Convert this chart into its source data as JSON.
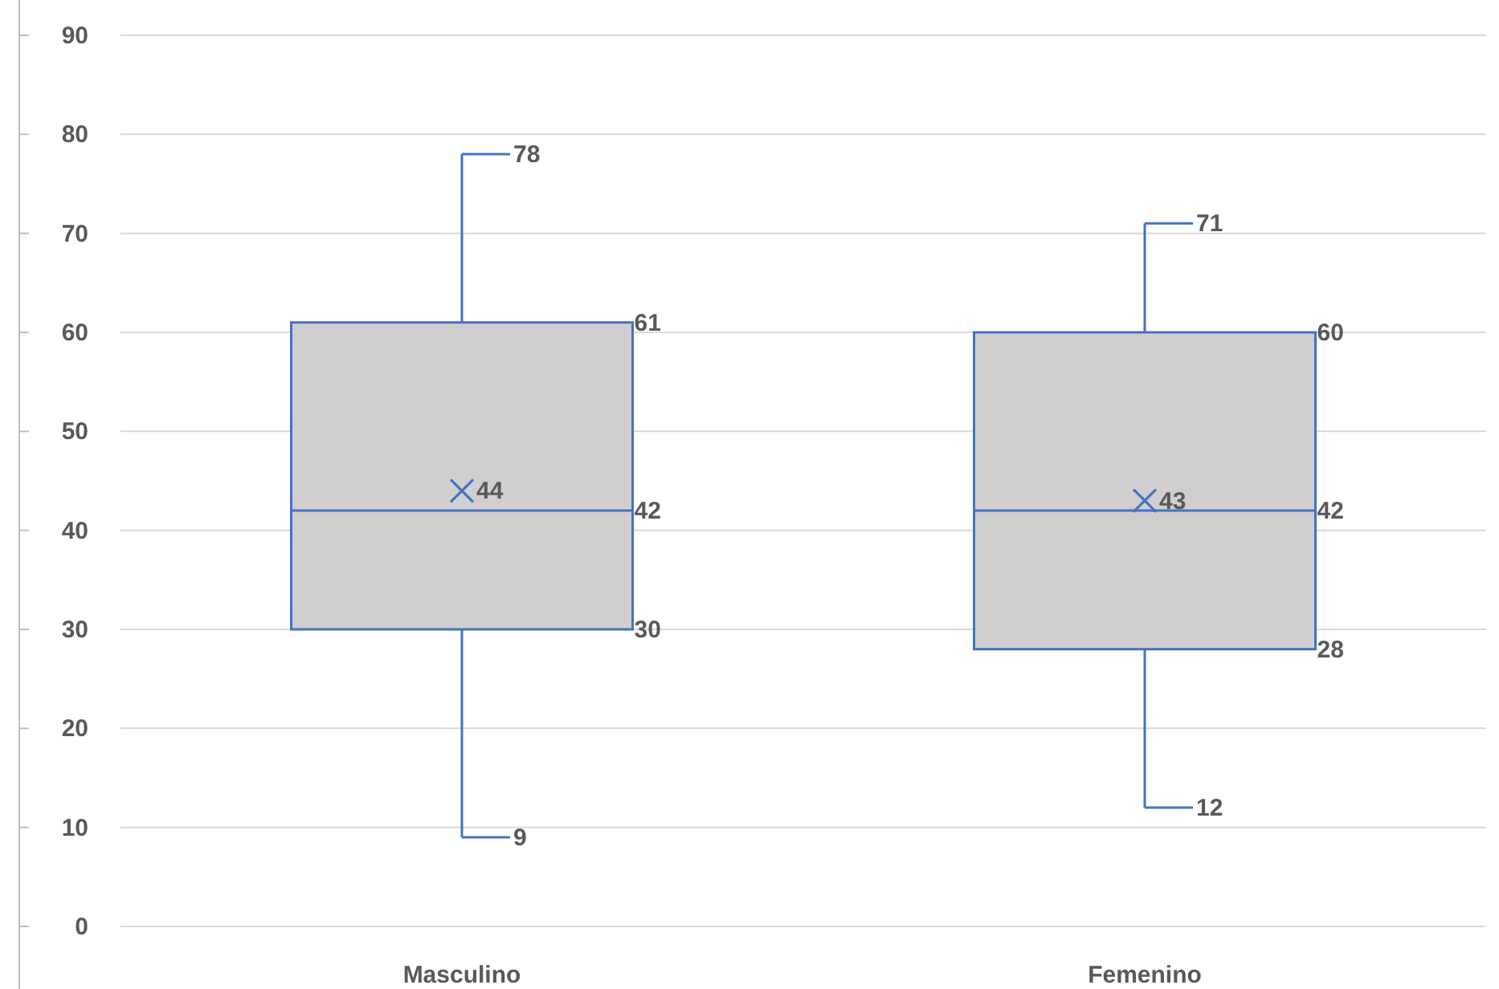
{
  "chart_data": {
    "type": "box",
    "categories": [
      "Masculino",
      "Femenino"
    ],
    "boxes": [
      {
        "low": 9,
        "q1": 30,
        "median": 42,
        "q3": 61,
        "high": 78,
        "mean": 44
      },
      {
        "low": 12,
        "q1": 28,
        "median": 42,
        "q3": 60,
        "high": 71,
        "mean": 43
      }
    ],
    "color": "#4472c4",
    "marker": "cross",
    "ylim": [
      0,
      90
    ],
    "yticks": [
      0,
      10,
      20,
      30,
      40,
      50,
      60,
      70,
      80,
      90
    ],
    "grid": "y",
    "annotations": [
      {
        "text": "78",
        "x": "Masculino",
        "y": 78
      },
      {
        "text": "9",
        "x": "Masculino",
        "y": 9
      },
      {
        "text": "71",
        "x": "Femenino",
        "y": 71
      },
      {
        "text": "12",
        "x": "Femenino",
        "y": 12
      },
      "61",
      "42",
      "30",
      "44",
      "60",
      "42",
      "28",
      "43"
    ]
  }
}
